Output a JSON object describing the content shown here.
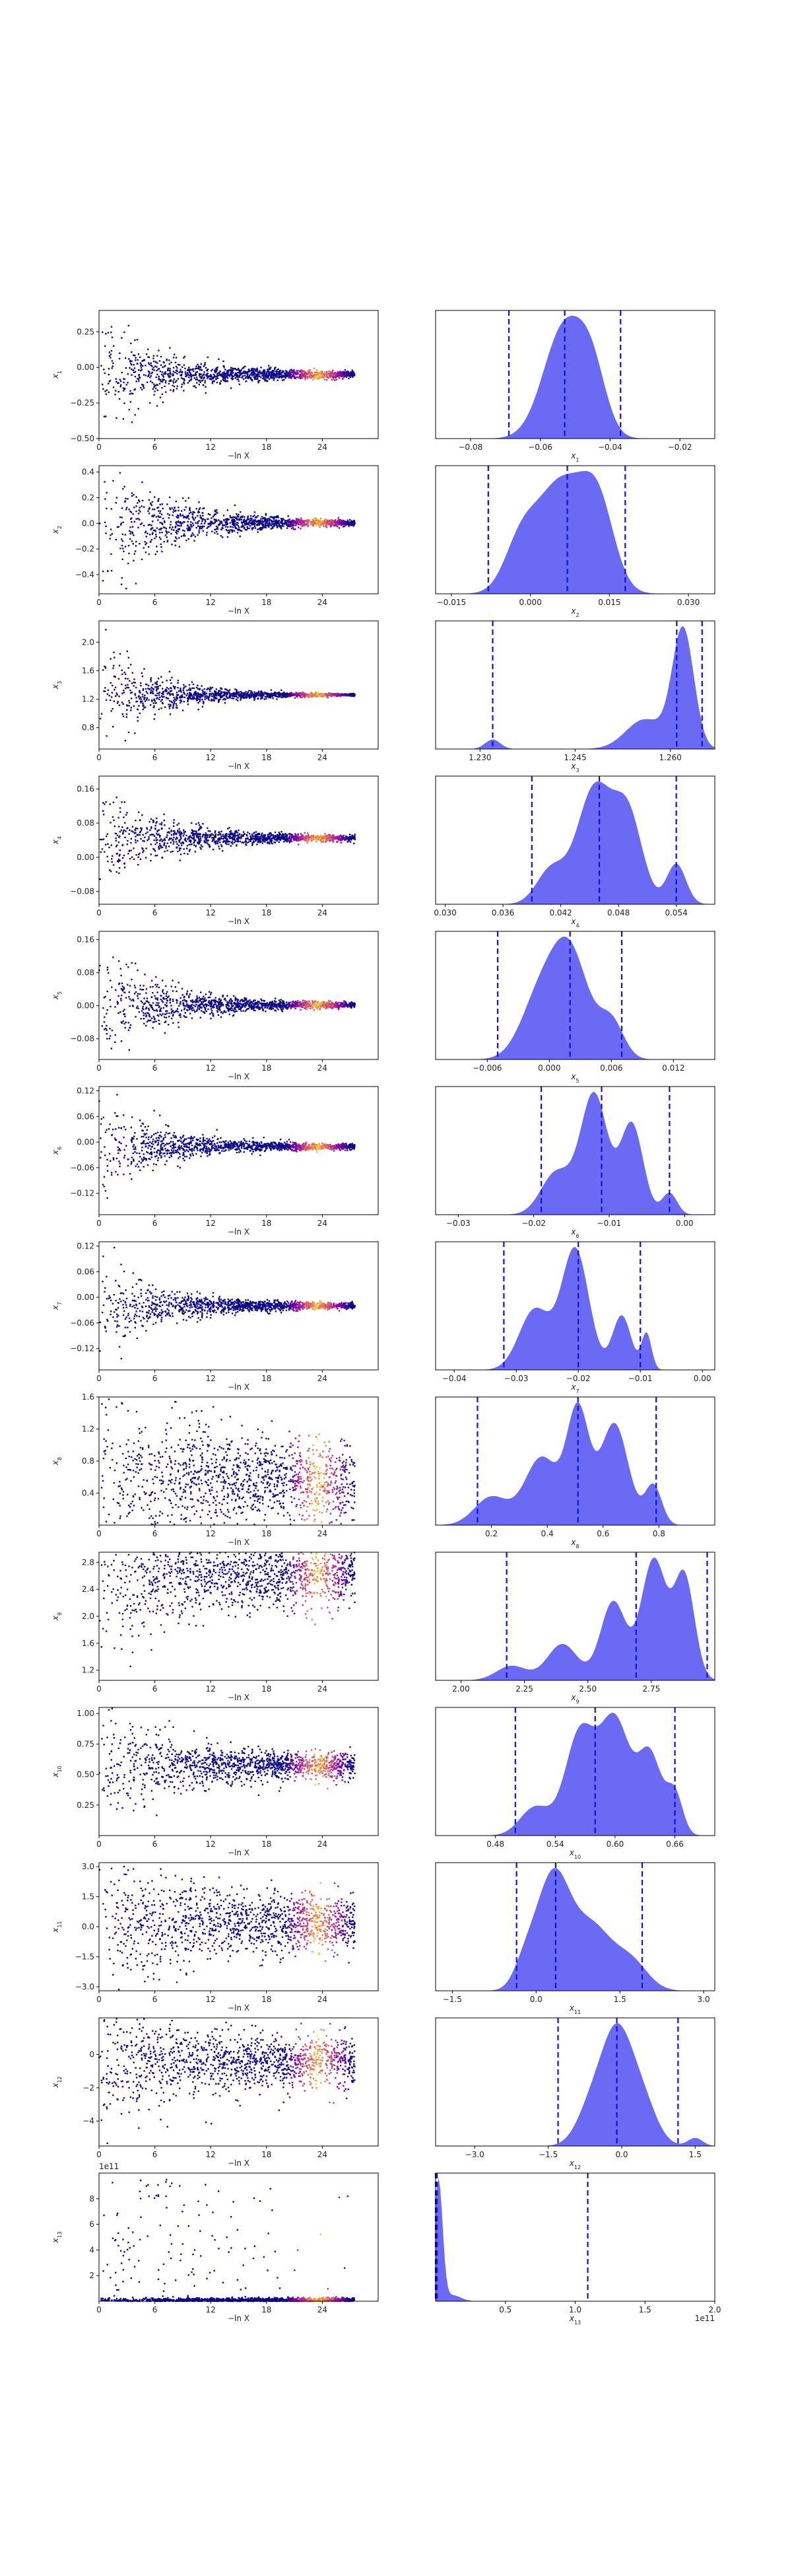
{
  "chart_data": {
    "type": "trace-plot",
    "grid": false,
    "trace_xlabel": "−ln X",
    "trace_xticks": [
      "0",
      "6",
      "12",
      "18",
      "24"
    ],
    "trace_xlim": [
      0,
      30
    ],
    "colormap": [
      "#0c0887",
      "#7e03a8",
      "#cc4778",
      "#f89540",
      "#f0f921"
    ],
    "posterior_fill": "#6a6af5",
    "posterior_line": "#1010e0",
    "rows": [
      {
        "param": "x",
        "sub": "1",
        "trace": {
          "ylim": [
            -0.5,
            0.4
          ],
          "yticks": [
            "0.25",
            "0.00",
            "−0.25",
            "−0.50"
          ],
          "ytick_values": [
            0.25,
            0.0,
            -0.25,
            -0.5
          ],
          "center": -0.05,
          "spread0": 0.22,
          "spread_end": 0.01
        },
        "posterior": {
          "xlim": [
            -0.09,
            -0.01
          ],
          "xticks": [
            "−0.08",
            "−0.06",
            "−0.04",
            "−0.02"
          ],
          "xtick_values": [
            -0.08,
            -0.06,
            -0.04,
            -0.02
          ],
          "median": -0.053,
          "lower": -0.069,
          "upper": -0.037,
          "peaks": [
            [
              -0.053,
              0.006,
              1.0
            ],
            [
              -0.045,
              0.004,
              0.45
            ]
          ]
        }
      },
      {
        "param": "x",
        "sub": "2",
        "trace": {
          "ylim": [
            -0.55,
            0.45
          ],
          "yticks": [
            "0.4",
            "0.2",
            "0.0",
            "−0.2",
            "−0.4"
          ],
          "ytick_values": [
            0.4,
            0.2,
            0.0,
            -0.2,
            -0.4
          ],
          "center": 0.005,
          "spread0": 0.3,
          "spread_end": 0.01
        },
        "posterior": {
          "xlim": [
            -0.018,
            0.035
          ],
          "xticks": [
            "−0.015",
            "0.000",
            "0.015",
            "0.030"
          ],
          "xtick_values": [
            -0.015,
            0.0,
            0.015,
            0.03
          ],
          "median": 0.007,
          "lower": -0.008,
          "upper": 0.018,
          "peaks": [
            [
              0.006,
              0.005,
              1.0
            ],
            [
              0.013,
              0.003,
              0.6
            ],
            [
              -0.002,
              0.003,
              0.35
            ]
          ]
        }
      },
      {
        "param": "x",
        "sub": "3",
        "trace": {
          "ylim": [
            0.5,
            2.3
          ],
          "yticks": [
            "2.0",
            "1.6",
            "1.2",
            "0.8"
          ],
          "ytick_values": [
            2.0,
            1.6,
            1.2,
            0.8
          ],
          "center": 1.26,
          "spread0": 0.35,
          "spread_end": 0.005
        },
        "posterior": {
          "xlim": [
            1.223,
            1.267
          ],
          "xticks": [
            "1.230",
            "1.245",
            "1.260"
          ],
          "xtick_values": [
            1.23,
            1.245,
            1.26
          ],
          "median": 1.261,
          "lower": 1.232,
          "upper": 1.265,
          "peaks": [
            [
              1.262,
              0.0017,
              1.0
            ],
            [
              1.256,
              0.003,
              0.25
            ],
            [
              1.232,
              0.0012,
              0.08
            ]
          ]
        }
      },
      {
        "param": "x",
        "sub": "4",
        "trace": {
          "ylim": [
            -0.11,
            0.19
          ],
          "yticks": [
            "0.16",
            "0.08",
            "0.00",
            "−0.08"
          ],
          "ytick_values": [
            0.16,
            0.08,
            0.0,
            -0.08
          ],
          "center": 0.045,
          "spread0": 0.06,
          "spread_end": 0.003
        },
        "posterior": {
          "xlim": [
            0.029,
            0.058
          ],
          "xticks": [
            "0.030",
            "0.036",
            "0.042",
            "0.048",
            "0.054"
          ],
          "xtick_values": [
            0.03,
            0.036,
            0.042,
            0.048,
            0.054
          ],
          "median": 0.046,
          "lower": 0.039,
          "upper": 0.054,
          "peaks": [
            [
              0.0455,
              0.0018,
              1.0
            ],
            [
              0.049,
              0.0015,
              0.75
            ],
            [
              0.054,
              0.001,
              0.35
            ],
            [
              0.041,
              0.0015,
              0.3
            ]
          ]
        }
      },
      {
        "param": "x",
        "sub": "5",
        "trace": {
          "ylim": [
            -0.13,
            0.18
          ],
          "yticks": [
            "0.16",
            "0.08",
            "0.00",
            "−0.08"
          ],
          "ytick_values": [
            0.16,
            0.08,
            0.0,
            -0.08
          ],
          "center": 0.002,
          "spread0": 0.07,
          "spread_end": 0.003
        },
        "posterior": {
          "xlim": [
            -0.011,
            0.016
          ],
          "xticks": [
            "−0.006",
            "0.000",
            "0.006",
            "0.012"
          ],
          "xtick_values": [
            -0.006,
            0.0,
            0.006,
            0.012
          ],
          "median": 0.002,
          "lower": -0.005,
          "upper": 0.007,
          "peaks": [
            [
              0.002,
              0.0018,
              1.0
            ],
            [
              -0.001,
              0.0018,
              0.55
            ],
            [
              0.006,
              0.0012,
              0.35
            ]
          ]
        }
      },
      {
        "param": "x",
        "sub": "6",
        "trace": {
          "ylim": [
            -0.17,
            0.13
          ],
          "yticks": [
            "0.12",
            "0.06",
            "0.00",
            "−0.06",
            "−0.12"
          ],
          "ytick_values": [
            0.12,
            0.06,
            0.0,
            -0.06,
            -0.12
          ],
          "center": -0.01,
          "spread0": 0.06,
          "spread_end": 0.003
        },
        "posterior": {
          "xlim": [
            -0.033,
            0.004
          ],
          "xticks": [
            "−0.03",
            "−0.02",
            "−0.01",
            "0.00"
          ],
          "xtick_values": [
            -0.03,
            -0.02,
            -0.01,
            0.0
          ],
          "median": -0.011,
          "lower": -0.019,
          "upper": -0.002,
          "peaks": [
            [
              -0.012,
              0.0018,
              1.0
            ],
            [
              -0.007,
              0.0015,
              0.75
            ],
            [
              -0.017,
              0.002,
              0.35
            ],
            [
              -0.002,
              0.001,
              0.18
            ]
          ]
        }
      },
      {
        "param": "x",
        "sub": "7",
        "trace": {
          "ylim": [
            -0.17,
            0.13
          ],
          "yticks": [
            "0.12",
            "0.06",
            "0.00",
            "−0.06",
            "−0.12"
          ],
          "ytick_values": [
            0.12,
            0.06,
            0.0,
            -0.06,
            -0.12
          ],
          "center": -0.02,
          "spread0": 0.06,
          "spread_end": 0.003
        },
        "posterior": {
          "xlim": [
            -0.043,
            0.002
          ],
          "xticks": [
            "−0.04",
            "−0.03",
            "−0.02",
            "−0.01",
            "0.00"
          ],
          "xtick_values": [
            -0.04,
            -0.03,
            -0.02,
            -0.01,
            0.0
          ],
          "median": -0.02,
          "lower": -0.032,
          "upper": -0.01,
          "peaks": [
            [
              -0.0205,
              0.0022,
              1.0
            ],
            [
              -0.027,
              0.0025,
              0.5
            ],
            [
              -0.013,
              0.0015,
              0.45
            ],
            [
              -0.009,
              0.0008,
              0.3
            ]
          ]
        }
      },
      {
        "param": "x",
        "sub": "8",
        "trace": {
          "ylim": [
            0.0,
            1.6
          ],
          "yticks": [
            "1.6",
            "1.2",
            "0.8",
            "0.4"
          ],
          "ytick_values": [
            1.6,
            1.2,
            0.8,
            0.4
          ],
          "center": 0.55,
          "spread0": 0.45,
          "spread_end": 0.25
        },
        "posterior": {
          "xlim": [
            0.0,
            1.0
          ],
          "xticks": [
            "0.2",
            "0.4",
            "0.6",
            "0.8"
          ],
          "xtick_values": [
            0.2,
            0.4,
            0.6,
            0.8
          ],
          "median": 0.51,
          "lower": 0.15,
          "upper": 0.79,
          "peaks": [
            [
              0.51,
              0.04,
              1.0
            ],
            [
              0.64,
              0.05,
              0.9
            ],
            [
              0.38,
              0.06,
              0.6
            ],
            [
              0.2,
              0.06,
              0.25
            ],
            [
              0.78,
              0.03,
              0.35
            ]
          ]
        }
      },
      {
        "param": "x",
        "sub": "9",
        "trace": {
          "ylim": [
            1.05,
            2.95
          ],
          "yticks": [
            "2.8",
            "2.4",
            "2.0",
            "1.6",
            "1.2"
          ],
          "ytick_values": [
            2.8,
            2.4,
            2.0,
            1.6,
            1.2
          ],
          "center": 2.6,
          "spread0": 0.5,
          "spread_end": 0.22
        },
        "posterior": {
          "xlim": [
            1.9,
            3.0
          ],
          "xticks": [
            "2.00",
            "2.25",
            "2.50",
            "2.75"
          ],
          "xtick_values": [
            2.0,
            2.25,
            2.5,
            2.75
          ],
          "median": 2.69,
          "lower": 2.18,
          "upper": 2.97,
          "peaks": [
            [
              2.76,
              0.05,
              1.0
            ],
            [
              2.88,
              0.04,
              0.85
            ],
            [
              2.6,
              0.05,
              0.65
            ],
            [
              2.4,
              0.06,
              0.3
            ],
            [
              2.2,
              0.06,
              0.12
            ]
          ]
        }
      },
      {
        "param": "x",
        "sub": "10",
        "trace": {
          "ylim": [
            0.0,
            1.05
          ],
          "yticks": [
            "1.00",
            "0.75",
            "0.50",
            "0.25"
          ],
          "ytick_values": [
            1.0,
            0.75,
            0.5,
            0.25
          ],
          "center": 0.57,
          "spread0": 0.25,
          "spread_end": 0.05
        },
        "posterior": {
          "xlim": [
            0.42,
            0.7
          ],
          "xticks": [
            "0.48",
            "0.54",
            "0.60",
            "0.66"
          ],
          "xtick_values": [
            0.48,
            0.54,
            0.6,
            0.66
          ],
          "median": 0.58,
          "lower": 0.5,
          "upper": 0.66,
          "peaks": [
            [
              0.6,
              0.015,
              1.0
            ],
            [
              0.565,
              0.015,
              0.9
            ],
            [
              0.635,
              0.012,
              0.7
            ],
            [
              0.52,
              0.015,
              0.25
            ],
            [
              0.66,
              0.008,
              0.35
            ]
          ]
        }
      },
      {
        "param": "x",
        "sub": "11",
        "trace": {
          "ylim": [
            -3.2,
            3.2
          ],
          "yticks": [
            "3.0",
            "1.5",
            "0.0",
            "−1.5",
            "−3.0"
          ],
          "ytick_values": [
            3.0,
            1.5,
            0.0,
            -1.5,
            -3.0
          ],
          "center": 0.2,
          "spread0": 1.3,
          "spread_end": 0.7
        },
        "posterior": {
          "xlim": [
            -1.8,
            3.2
          ],
          "xticks": [
            "−1.5",
            "0.0",
            "1.5",
            "3.0"
          ],
          "xtick_values": [
            -1.5,
            0.0,
            1.5,
            3.0
          ],
          "median": 0.35,
          "lower": -0.35,
          "upper": 1.9,
          "peaks": [
            [
              0.3,
              0.3,
              1.0
            ],
            [
              1.0,
              0.35,
              0.55
            ],
            [
              1.7,
              0.3,
              0.25
            ],
            [
              -0.2,
              0.2,
              0.2
            ]
          ]
        }
      },
      {
        "param": "x",
        "sub": "12",
        "trace": {
          "ylim": [
            -5.5,
            2.2
          ],
          "yticks": [
            "0",
            "−2",
            "−4"
          ],
          "ytick_values": [
            0,
            -2,
            -4
          ],
          "center": -0.4,
          "spread0": 1.6,
          "spread_end": 0.8
        },
        "posterior": {
          "xlim": [
            -3.8,
            1.9
          ],
          "xticks": [
            "−3.0",
            "−1.5",
            "0.0",
            "1.5"
          ],
          "xtick_values": [
            -3.0,
            -1.5,
            0.0,
            1.5
          ],
          "median": -0.1,
          "lower": -1.3,
          "upper": 1.15,
          "peaks": [
            [
              -0.1,
              0.3,
              1.0
            ],
            [
              0.4,
              0.3,
              0.45
            ],
            [
              -0.6,
              0.3,
              0.4
            ],
            [
              1.5,
              0.15,
              0.08
            ]
          ]
        }
      },
      {
        "param": "x",
        "sub": "13",
        "trace": {
          "ylim": [
            0,
            10
          ],
          "yticks": [
            "8",
            "6",
            "4",
            "2"
          ],
          "ytick_values": [
            8,
            6,
            4,
            2
          ],
          "offset": "1e11",
          "center": 0.15,
          "spread0": 3.0,
          "spread_end": 0.2,
          "kind": "skewed"
        },
        "posterior": {
          "xlim": [
            0.0,
            2.0
          ],
          "xticks": [
            "0.5",
            "1.0",
            "1.5",
            "2.0"
          ],
          "xtick_values": [
            0.5,
            1.0,
            1.5,
            2.0
          ],
          "offset": "1e11",
          "median": 0.01,
          "lower": 0.0,
          "upper": 1.09,
          "peaks": [
            [
              0.02,
              0.03,
              1.0
            ],
            [
              0.12,
              0.06,
              0.05
            ]
          ]
        }
      }
    ]
  }
}
